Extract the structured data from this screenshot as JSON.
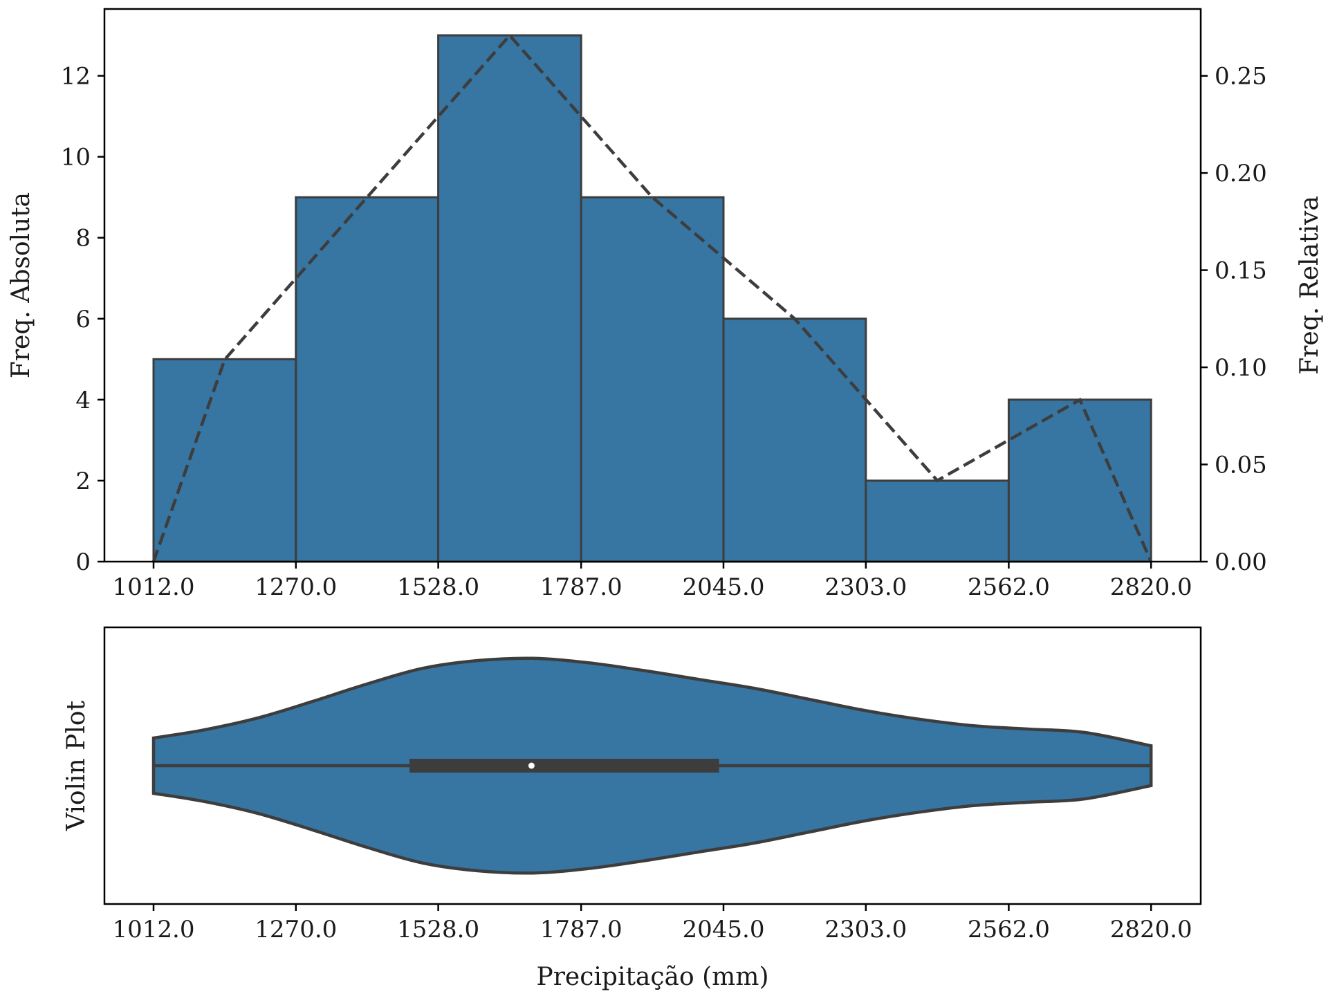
{
  "chart_data": [
    {
      "type": "bar",
      "subtype": "histogram-with-frequency-polygon",
      "bin_edges": [
        1012.0,
        1270.0,
        1528.0,
        1787.0,
        2045.0,
        2303.0,
        2562.0,
        2820.0
      ],
      "tick_labels": [
        "1012.0",
        "1270.0",
        "1528.0",
        "1787.0",
        "2045.0",
        "2303.0",
        "2562.0",
        "2820.0"
      ],
      "counts": [
        5,
        9,
        13,
        9,
        6,
        2,
        4
      ],
      "polygon": {
        "style": "dashed",
        "x": [
          1012.0,
          1141.0,
          1399.0,
          1657.5,
          1916.0,
          2174.0,
          2432.5,
          2691.0,
          2820.0
        ],
        "relative_frequency": [
          0.0,
          0.104,
          0.1875,
          0.2708,
          0.1875,
          0.125,
          0.0417,
          0.0833,
          0.0
        ]
      },
      "ylabel_left": "Freq. Absoluta",
      "ylabel_right": "Freq. Relativa",
      "ylim_left": [
        0,
        13.65
      ],
      "ylim_right": [
        0,
        0.2844
      ],
      "yticks_left": [
        "0",
        "2",
        "4",
        "6",
        "8",
        "10",
        "12"
      ],
      "yticks_left_values": [
        0,
        2,
        4,
        6,
        8,
        10,
        12
      ],
      "yticks_right": [
        "0.00",
        "0.05",
        "0.10",
        "0.15",
        "0.20",
        "0.25"
      ],
      "yticks_right_values": [
        0.0,
        0.05,
        0.1,
        0.15,
        0.2,
        0.25
      ],
      "xlim": [
        923,
        2910
      ],
      "grid": false
    },
    {
      "type": "violin",
      "orientation": "horizontal",
      "ylabel": "Violin Plot",
      "xlabel": "Precipitação (mm)",
      "tick_labels": [
        "1012.0",
        "1270.0",
        "1528.0",
        "1787.0",
        "2045.0",
        "2303.0",
        "2562.0",
        "2820.0"
      ],
      "tick_values": [
        1012.0,
        1270.0,
        1528.0,
        1787.0,
        2045.0,
        2303.0,
        2562.0,
        2820.0
      ],
      "xlim": [
        923,
        2910
      ],
      "min": 1012.0,
      "max": 2820.0,
      "q1": 1476,
      "q3": 2037,
      "median": 1697,
      "density_profile": {
        "x": [
          1012,
          1100,
          1200,
          1300,
          1400,
          1500,
          1600,
          1700,
          1800,
          1900,
          2000,
          2100,
          2200,
          2300,
          2400,
          2500,
          2600,
          2700,
          2820
        ],
        "half_width": [
          0.25,
          0.32,
          0.43,
          0.58,
          0.74,
          0.88,
          0.95,
          0.97,
          0.93,
          0.86,
          0.78,
          0.7,
          0.6,
          0.5,
          0.42,
          0.36,
          0.33,
          0.3,
          0.18
        ]
      },
      "grid": false
    }
  ],
  "colors": {
    "fill": "#3775a2",
    "edge": "#3d3d3d",
    "axis": "#000000",
    "marker": "#ffffff"
  }
}
